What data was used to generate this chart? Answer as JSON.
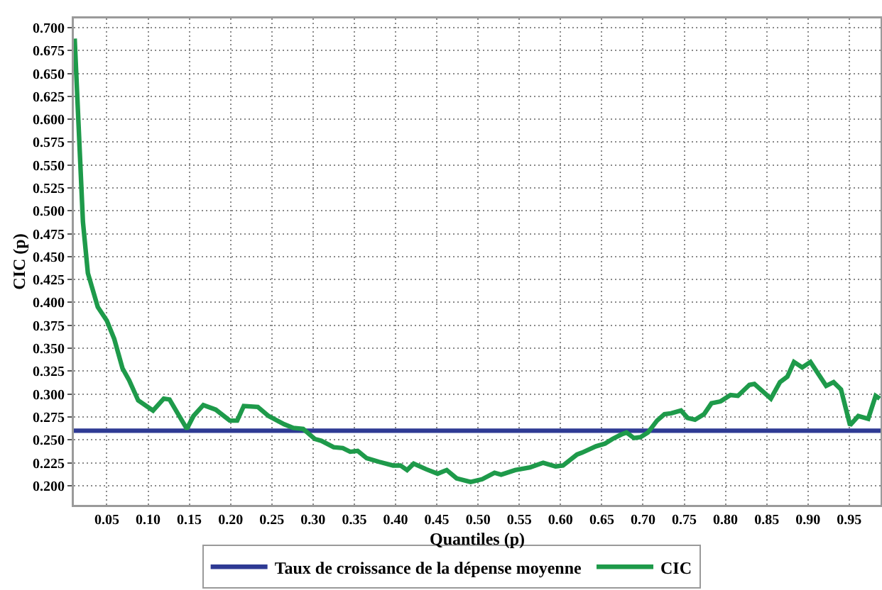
{
  "chart_data": {
    "type": "line",
    "xlabel": "Quantiles (p)",
    "ylabel": "CIC (p)",
    "xlim": [
      0.01,
      0.988
    ],
    "ylim": [
      0.179,
      0.71
    ],
    "xticks": [
      0.05,
      {
        "value": 0.1,
        "label": "0.10"
      },
      0.15,
      {
        "value": 0.2,
        "label": "0.20"
      },
      0.25,
      {
        "value": 0.3,
        "label": "0.30"
      },
      0.35,
      {
        "value": 0.4,
        "label": "0.40"
      },
      0.45,
      {
        "value": 0.5,
        "label": "0.50"
      },
      0.55,
      {
        "value": 0.6,
        "label": "0.60"
      },
      0.65,
      {
        "value": 0.7,
        "label": "0.70"
      },
      0.75,
      {
        "value": 0.8,
        "label": "0.80"
      },
      0.85,
      {
        "value": 0.9,
        "label": "0.90"
      },
      0.95
    ],
    "yticks": [
      {
        "value": 0.2,
        "label": "0.200"
      },
      0.225,
      {
        "value": 0.25,
        "label": "0.250"
      },
      0.275,
      {
        "value": 0.3,
        "label": "0.300"
      },
      0.325,
      {
        "value": 0.35,
        "label": "0.350"
      },
      0.375,
      {
        "value": 0.4,
        "label": "0.400"
      },
      0.425,
      {
        "value": 0.45,
        "label": "0.450"
      },
      0.475,
      {
        "value": 0.5,
        "label": "0.500"
      },
      0.525,
      {
        "value": 0.55,
        "label": "0.550"
      },
      0.575,
      {
        "value": 0.6,
        "label": "0.600"
      },
      0.625,
      {
        "value": 0.65,
        "label": "0.650"
      },
      0.675,
      {
        "value": 0.7,
        "label": "0.700"
      }
    ],
    "grid": true,
    "legend": "bottom",
    "series": [
      {
        "name": "Taux de croissance de la dépense moyenne",
        "color": "#2e3a94",
        "x": [
          0.01,
          0.988
        ],
        "values": [
          0.26,
          0.26
        ]
      },
      {
        "name": "CIC",
        "color": "#1e9a4a",
        "x": [
          0.011,
          0.021,
          0.027,
          0.039,
          0.05,
          0.059,
          0.069,
          0.077,
          0.088,
          0.106,
          0.119,
          0.126,
          0.147,
          0.155,
          0.167,
          0.182,
          0.199,
          0.208,
          0.216,
          0.233,
          0.246,
          0.265,
          0.276,
          0.288,
          0.302,
          0.31,
          0.325,
          0.336,
          0.345,
          0.354,
          0.365,
          0.38,
          0.397,
          0.406,
          0.414,
          0.422,
          0.437,
          0.451,
          0.462,
          0.474,
          0.491,
          0.505,
          0.52,
          0.528,
          0.545,
          0.563,
          0.579,
          0.594,
          0.603,
          0.62,
          0.626,
          0.643,
          0.654,
          0.663,
          0.674,
          0.68,
          0.689,
          0.697,
          0.706,
          0.717,
          0.726,
          0.734,
          0.746,
          0.754,
          0.763,
          0.774,
          0.783,
          0.794,
          0.806,
          0.815,
          0.829,
          0.835,
          0.855,
          0.866,
          0.875,
          0.883,
          0.893,
          0.903,
          0.922,
          0.931,
          0.94,
          0.951,
          0.961,
          0.973,
          0.982,
          0.987
        ],
        "values": [
          0.688,
          0.488,
          0.432,
          0.395,
          0.38,
          0.36,
          0.328,
          0.315,
          0.293,
          0.282,
          0.295,
          0.294,
          0.262,
          0.276,
          0.288,
          0.283,
          0.271,
          0.271,
          0.287,
          0.286,
          0.276,
          0.267,
          0.263,
          0.262,
          0.251,
          0.249,
          0.242,
          0.241,
          0.237,
          0.238,
          0.23,
          0.226,
          0.222,
          0.222,
          0.217,
          0.224,
          0.218,
          0.213,
          0.217,
          0.208,
          0.204,
          0.207,
          0.214,
          0.212,
          0.217,
          0.22,
          0.225,
          0.221,
          0.222,
          0.234,
          0.236,
          0.243,
          0.246,
          0.251,
          0.256,
          0.258,
          0.252,
          0.253,
          0.258,
          0.271,
          0.278,
          0.279,
          0.282,
          0.274,
          0.272,
          0.278,
          0.29,
          0.292,
          0.299,
          0.298,
          0.31,
          0.311,
          0.295,
          0.313,
          0.319,
          0.335,
          0.329,
          0.335,
          0.309,
          0.313,
          0.305,
          0.266,
          0.276,
          0.273,
          0.298,
          0.295
        ]
      }
    ]
  }
}
